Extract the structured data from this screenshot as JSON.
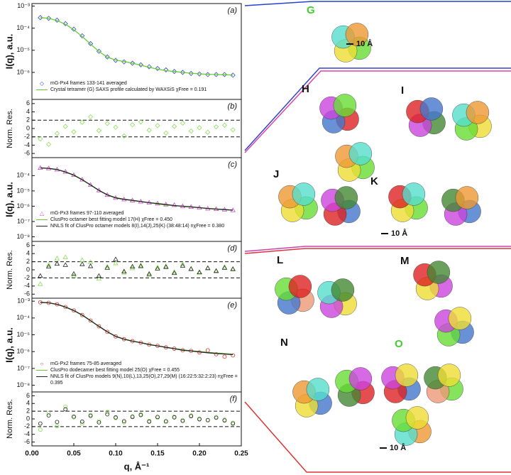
{
  "chart_data": [
    {
      "type": "line",
      "panel": "(a)",
      "ylabel": "I(q), a.u.",
      "log_y": true,
      "legend": "lower left",
      "xlim": [
        0,
        0.25
      ],
      "ylim": [
        6e-08,
        0.0013
      ],
      "yticks": [
        {
          "value": 0.001,
          "label": "10⁻³"
        },
        {
          "value": 0.0001,
          "label": "10⁻⁴"
        },
        {
          "value": 1e-05,
          "label": "10⁻⁵"
        },
        {
          "value": 1e-06,
          "label": "10⁻⁶"
        }
      ],
      "x": [
        0.01,
        0.02,
        0.03,
        0.04,
        0.05,
        0.06,
        0.07,
        0.08,
        0.09,
        0.1,
        0.11,
        0.12,
        0.13,
        0.14,
        0.15,
        0.16,
        0.17,
        0.18,
        0.19,
        0.2,
        0.21,
        0.22,
        0.23,
        0.24
      ],
      "series": [
        {
          "name": "mG-Px4 frames 133-141 averaged",
          "color": "#3344cc",
          "marker": "diamond",
          "values": [
            0.0003,
            0.00028,
            0.00023,
            0.00016,
            9e-05,
            4.5e-05,
            2e-05,
            9e-06,
            5e-06,
            3.5e-06,
            3e-06,
            2.6e-06,
            2.2e-06,
            1.8e-06,
            1.5e-06,
            1.3e-06,
            1.1e-06,
            1e-06,
            9e-07,
            8.5e-07,
            8e-07,
            8e-07,
            8e-07,
            7.5e-07
          ]
        },
        {
          "name": "Crystal tetramer (G) SAXS profile calculated by WAXSiS  χFree = 0.191",
          "color": "#66cc33",
          "style": "line",
          "values": [
            0.0003,
            0.00028,
            0.00022,
            0.00015,
            8.5e-05,
            4.2e-05,
            1.9e-05,
            8.8e-06,
            4.9e-06,
            3.6e-06,
            3.1e-06,
            2.6e-06,
            2.1e-06,
            1.7e-06,
            1.4e-06,
            1.2e-06,
            1.1e-06,
            1e-06,
            9.2e-07,
            8.6e-07,
            8.2e-07,
            8e-07,
            7.8e-07,
            7.6e-07
          ]
        }
      ]
    },
    {
      "type": "scatter",
      "panel": "(b)",
      "ylabel": "Norm. Res.",
      "xlim": [
        0,
        0.25
      ],
      "ylim": [
        -7,
        7
      ],
      "yticks": [
        -6,
        -4,
        -2,
        0,
        2,
        4,
        6
      ],
      "reference_lines": [
        -2,
        2
      ],
      "x": [
        0.01,
        0.02,
        0.03,
        0.04,
        0.05,
        0.06,
        0.07,
        0.08,
        0.09,
        0.1,
        0.11,
        0.12,
        0.13,
        0.14,
        0.15,
        0.16,
        0.17,
        0.18,
        0.19,
        0.2,
        0.21,
        0.22,
        0.23,
        0.24
      ],
      "series": [
        {
          "color": "#88dd55",
          "marker": "diamond",
          "values": [
            -2.5,
            -3.8,
            -1.2,
            0.5,
            -0.8,
            1.5,
            2.8,
            -0.5,
            1.2,
            0.3,
            -1.8,
            0.9,
            1.6,
            -0.4,
            0.7,
            -1.1,
            0.5,
            1.3,
            -0.6,
            0.2,
            -0.9,
            0.4,
            0.8,
            -0.3
          ]
        }
      ]
    },
    {
      "type": "line",
      "panel": "(c)",
      "ylabel": "I(q), a.u.",
      "log_y": true,
      "legend": "lower left",
      "xlim": [
        0,
        0.25
      ],
      "ylim": [
        5e-09,
        0.0015
      ],
      "yticks": [
        {
          "value": 0.0001,
          "label": "10⁻⁴"
        },
        {
          "value": 1e-05,
          "label": "10⁻⁵"
        },
        {
          "value": 1e-06,
          "label": "10⁻⁶"
        },
        {
          "value": 1e-07,
          "label": "10⁻⁷"
        },
        {
          "value": 1e-08,
          "label": "10⁻⁸"
        }
      ],
      "x": [
        0.01,
        0.02,
        0.03,
        0.04,
        0.05,
        0.06,
        0.07,
        0.08,
        0.09,
        0.1,
        0.11,
        0.12,
        0.13,
        0.14,
        0.15,
        0.16,
        0.17,
        0.18,
        0.19,
        0.2,
        0.21,
        0.22,
        0.23,
        0.24
      ],
      "series": [
        {
          "name": "mG-Px3 frames 97-110 averaged",
          "color": "#cc44cc",
          "marker": "triangle",
          "values": [
            0.00032,
            0.0003,
            0.00025,
            0.00018,
            0.00011,
            5.5e-05,
            2.5e-05,
            1.1e-05,
            5.5e-06,
            3.5e-06,
            2.8e-06,
            2.4e-06,
            2e-06,
            1.7e-06,
            1.5e-06,
            1.3e-06,
            1.2e-06,
            1e-06,
            9e-07,
            8e-07,
            7e-07,
            6.5e-07,
            6e-07,
            5.5e-07
          ]
        },
        {
          "name": "ClusPro octamer best fitting model 17(H)  χFree = 0.450",
          "color": "#66cc33",
          "style": "line",
          "values": [
            0.00032,
            0.0003,
            0.00025,
            0.00017,
            0.000105,
            5.3e-05,
            2.4e-05,
            1.08e-05,
            5.6e-06,
            3.6e-06,
            2.9e-06,
            2.4e-06,
            2e-06,
            1.7e-06,
            1.4e-06,
            1.2e-06,
            1.1e-06,
            9.8e-07,
            8.8e-07,
            8e-07,
            7.2e-07,
            6.6e-07,
            6e-07,
            5.5e-07
          ]
        },
        {
          "name": "NNLS fit of ClusPro octamer models 8(I),14(J),25(K) (38:48:14)  nχFree = 0.380",
          "color": "#222222",
          "style": "line",
          "values": [
            0.00032,
            0.0003,
            0.00025,
            0.000175,
            0.000108,
            5.4e-05,
            2.45e-05,
            1.09e-05,
            5.5e-06,
            3.5e-06,
            2.8e-06,
            2.4e-06,
            2e-06,
            1.7e-06,
            1.5e-06,
            1.3e-06,
            1.1e-06,
            1e-06,
            9e-07,
            8e-07,
            7.1e-07,
            6.5e-07,
            6e-07,
            5.5e-07
          ]
        }
      ]
    },
    {
      "type": "scatter",
      "panel": "(d)",
      "ylabel": "Norm. Res.",
      "xlim": [
        0,
        0.25
      ],
      "ylim": [
        -7,
        7
      ],
      "yticks": [
        -6,
        -4,
        -2,
        0,
        2,
        4,
        6
      ],
      "reference_lines": [
        -2,
        2
      ],
      "x": [
        0.01,
        0.02,
        0.03,
        0.04,
        0.05,
        0.06,
        0.07,
        0.08,
        0.09,
        0.1,
        0.11,
        0.12,
        0.13,
        0.14,
        0.15,
        0.16,
        0.17,
        0.18,
        0.19,
        0.2,
        0.21,
        0.22,
        0.23,
        0.24
      ],
      "series": [
        {
          "color": "#88dd55",
          "marker": "triangle",
          "values": [
            -3.5,
            1.2,
            2.8,
            3.1,
            -1.5,
            2.4,
            1.9,
            -2.2,
            0.8,
            1.6,
            -0.7,
            0.4,
            1.1,
            -1.3,
            0.6,
            0.9,
            -0.5,
            1.4,
            0.3,
            -0.8,
            0.5,
            -0.2,
            0.7,
            0.1
          ]
        },
        {
          "color": "#222222",
          "marker": "triangle",
          "values": [
            -1.5,
            0.8,
            1.5,
            1.2,
            -1,
            1.4,
            0.9,
            -1.5,
            0.5,
            2.6,
            -0.4,
            0.8,
            0.9,
            -1,
            0.3,
            0.7,
            -0.8,
            1,
            0.2,
            -0.6,
            0.4,
            -0.3,
            0.5,
            0.2
          ]
        }
      ]
    },
    {
      "type": "line",
      "panel": "(e)",
      "ylabel": "I(q), a.u.",
      "log_y": true,
      "legend": "lower left",
      "xlim": [
        0,
        0.25
      ],
      "ylim": [
        4e-09,
        0.0015
      ],
      "yticks": [
        {
          "value": 0.001,
          "label": "10⁻³"
        },
        {
          "value": 0.0001,
          "label": "10⁻⁴"
        },
        {
          "value": 1e-05,
          "label": "10⁻⁵"
        },
        {
          "value": 1e-06,
          "label": "10⁻⁶"
        },
        {
          "value": 1e-07,
          "label": "10⁻⁷"
        },
        {
          "value": 1e-08,
          "label": "10⁻⁸"
        }
      ],
      "x": [
        0.01,
        0.02,
        0.03,
        0.04,
        0.05,
        0.06,
        0.07,
        0.08,
        0.09,
        0.1,
        0.11,
        0.12,
        0.13,
        0.14,
        0.15,
        0.16,
        0.17,
        0.18,
        0.19,
        0.2,
        0.21,
        0.22,
        0.23,
        0.24
      ],
      "series": [
        {
          "name": "mG-Px2 frames 75-85 averaged",
          "color": "#dd3333",
          "marker": "circle",
          "values": [
            0.00085,
            0.0008,
            0.00065,
            0.00045,
            0.00028,
            0.00015,
            7e-05,
            3.2e-05,
            1.5e-05,
            8e-06,
            5.5e-06,
            4.2e-06,
            3.4e-06,
            2.6e-06,
            2.2e-06,
            1.8e-06,
            1.5e-06,
            1.2e-06,
            1.1e-06,
            9e-07,
            1.2e-06,
            7e-07,
            5e-07,
            6e-07
          ]
        },
        {
          "name": "ClusPro dodecamer best fitting model 25(O)  χFree = 0.455",
          "color": "#66cc33",
          "style": "line",
          "values": [
            0.00085,
            0.0008,
            0.00064,
            0.00044,
            0.00027,
            0.000145,
            6.8e-05,
            3.1e-05,
            1.52e-05,
            8.2e-06,
            5.6e-06,
            4.3e-06,
            3.4e-06,
            2.7e-06,
            2.2e-06,
            1.8e-06,
            1.5e-06,
            1.3e-06,
            1.1e-06,
            1e-06,
            9e-07,
            8.2e-07,
            7.6e-07,
            7e-07
          ]
        },
        {
          "name": "NNLS fit of ClusPro models 9(N),10(L),13,25(O),27,29(M) (16:22:5:32:2:23)  nχFree = 0.395",
          "color": "#222222",
          "style": "line",
          "values": [
            0.00085,
            0.0008,
            0.00065,
            0.00045,
            0.00028,
            0.00015,
            7e-05,
            3.2e-05,
            1.51e-05,
            8e-06,
            5.5e-06,
            4.2e-06,
            3.4e-06,
            2.6e-06,
            2.2e-06,
            1.8e-06,
            1.5e-06,
            1.2e-06,
            1.1e-06,
            9.5e-07,
            8.6e-07,
            7.8e-07,
            7.2e-07,
            6.6e-07
          ]
        }
      ]
    },
    {
      "type": "scatter",
      "panel": "(f)",
      "ylabel": "Norm. Res.",
      "xlabel": "q, Å⁻¹",
      "xlim": [
        0,
        0.25
      ],
      "ylim": [
        -7,
        7
      ],
      "yticks": [
        -6,
        -4,
        -2,
        0,
        2,
        4,
        6
      ],
      "reference_lines": [
        -2,
        2
      ],
      "xticks": [
        {
          "value": 0,
          "label": "0.00"
        },
        {
          "value": 0.05,
          "label": "0.05"
        },
        {
          "value": 0.1,
          "label": "0.10"
        },
        {
          "value": 0.15,
          "label": "0.15"
        },
        {
          "value": 0.2,
          "label": "0.20"
        },
        {
          "value": 0.25,
          "label": "0.25"
        }
      ],
      "x": [
        0.01,
        0.02,
        0.03,
        0.04,
        0.05,
        0.06,
        0.07,
        0.08,
        0.09,
        0.1,
        0.11,
        0.12,
        0.13,
        0.14,
        0.15,
        0.16,
        0.17,
        0.18,
        0.19,
        0.2,
        0.21,
        0.22,
        0.23,
        0.24
      ],
      "series": [
        {
          "color": "#88dd55",
          "marker": "circle",
          "values": [
            -2.8,
            1.5,
            -1.9,
            3.2,
            0.4,
            -1.2,
            1,
            -0.6,
            1.8,
            0.2,
            -0.9,
            0.7,
            1.2,
            -0.5,
            0.3,
            -0.8,
            0.6,
            -0.3,
            0.9,
            0.1,
            -0.4,
            0.5,
            -0.2,
            -1
          ]
        },
        {
          "color": "#222222",
          "marker": "circle",
          "values": [
            -1.2,
            0.9,
            -0.8,
            2.5,
            0.6,
            -0.7,
            0.8,
            -0.9,
            1.2,
            0.4,
            -0.6,
            0.5,
            1,
            -0.7,
            0.5,
            -0.6,
            0.4,
            -0.5,
            0.7,
            -0.1,
            -0.3,
            0.3,
            -0.4,
            -1.2
          ]
        }
      ]
    }
  ],
  "structures": {
    "labels": [
      "G",
      "H",
      "I",
      "J",
      "K",
      "L",
      "M",
      "N",
      "O"
    ],
    "scale_bars": [
      "10 Å",
      "10 Å",
      "10 Å"
    ]
  }
}
